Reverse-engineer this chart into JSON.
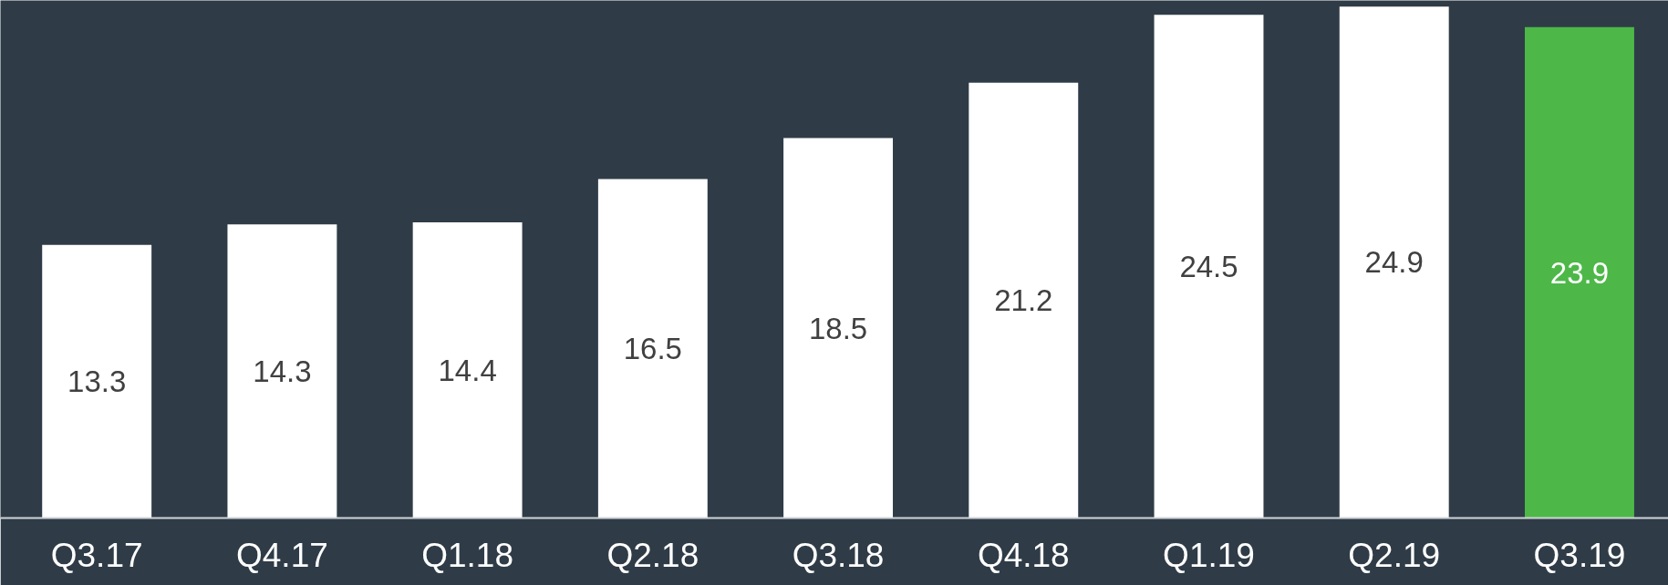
{
  "chart_data": {
    "type": "bar",
    "categories": [
      "Q3.17",
      "Q4.17",
      "Q1.18",
      "Q2.18",
      "Q3.18",
      "Q4.18",
      "Q1.19",
      "Q2.19",
      "Q3.19"
    ],
    "values": [
      13.3,
      14.3,
      14.4,
      16.5,
      18.5,
      21.2,
      24.5,
      24.9,
      23.9
    ],
    "colors": [
      "#ffffff",
      "#ffffff",
      "#ffffff",
      "#ffffff",
      "#ffffff",
      "#ffffff",
      "#ffffff",
      "#ffffff",
      "#4db848"
    ],
    "ylim": [
      0,
      25.2
    ],
    "data_labels": true,
    "grid": false
  }
}
